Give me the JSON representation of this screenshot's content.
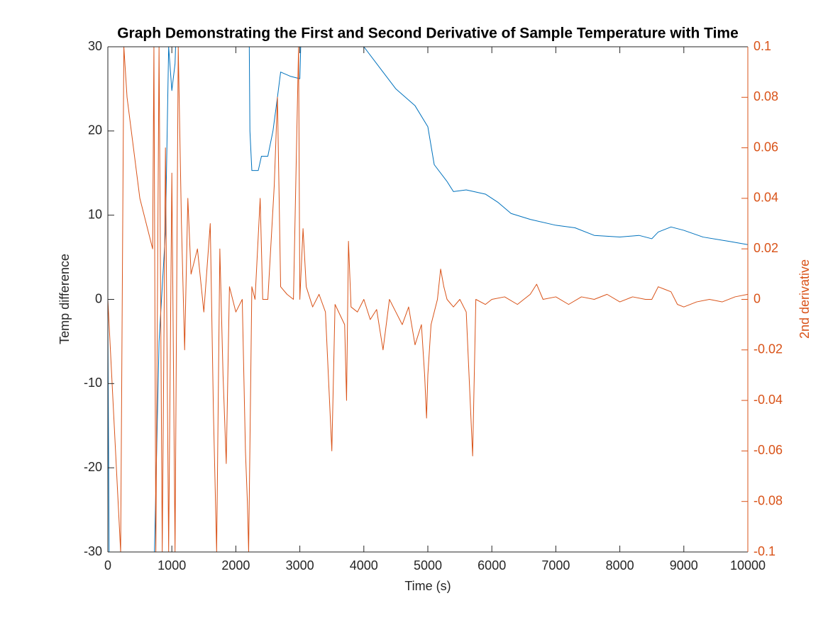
{
  "chart_data": {
    "type": "line",
    "title": "Graph Demonstrating the First and Second Derivative of Sample Temperature with Time",
    "xlabel": "Time (s)",
    "ylabel": "Temp difference",
    "y2label": "2nd derivative",
    "xlim": [
      0,
      10000
    ],
    "xticks": [
      0,
      1000,
      2000,
      3000,
      4000,
      5000,
      6000,
      7000,
      8000,
      9000,
      10000
    ],
    "ylim": [
      -30,
      30
    ],
    "yticks": [
      -30,
      -20,
      -10,
      0,
      10,
      20,
      30
    ],
    "y2lim": [
      -0.1,
      0.1
    ],
    "y2ticks": [
      -0.1,
      -0.08,
      -0.06,
      -0.04,
      -0.02,
      0,
      0.02,
      0.04,
      0.06,
      0.08,
      0.1
    ],
    "y2color": "#D95319",
    "series": [
      {
        "color": "#0072BD",
        "axis": "y",
        "x": [
          0,
          20,
          50,
          700,
          800,
          900,
          950,
          1000,
          1050,
          1100,
          2200,
          2220,
          2250,
          2350,
          2400,
          2500,
          2580,
          2650,
          2700,
          2850,
          3000,
          3050,
          4000,
          4300,
          4500,
          4800,
          5000,
          5100,
          5300,
          5400,
          5600,
          5900,
          6100,
          6300,
          6600,
          7000,
          7300,
          7600,
          8000,
          8300,
          8500,
          8600,
          8800,
          9000,
          9300,
          9700,
          10000
        ],
        "values": [
          -2,
          -30,
          -40,
          -40,
          -5,
          8,
          30,
          24.8,
          28,
          40,
          40,
          20,
          15.3,
          15.3,
          17,
          17,
          20,
          24,
          27,
          26.5,
          26.2,
          40,
          30,
          27,
          25,
          23,
          20.5,
          16,
          14,
          12.8,
          13,
          12.5,
          11.5,
          10.2,
          9.5,
          8.8,
          8.5,
          7.6,
          7.4,
          7.6,
          7.2,
          8.0,
          8.6,
          8.2,
          7.4,
          6.9,
          6.5
        ]
      },
      {
        "color": "#D95319",
        "axis": "y2",
        "x": [
          0,
          100,
          200,
          250,
          300,
          400,
          500,
          600,
          700,
          720,
          750,
          800,
          850,
          900,
          950,
          1000,
          1050,
          1100,
          1150,
          1200,
          1250,
          1300,
          1400,
          1500,
          1600,
          1650,
          1700,
          1750,
          1800,
          1850,
          1900,
          2000,
          2100,
          2150,
          2180,
          2200,
          2250,
          2300,
          2380,
          2420,
          2500,
          2600,
          2650,
          2700,
          2800,
          2900,
          2980,
          3000,
          3050,
          3100,
          3200,
          3300,
          3400,
          3500,
          3550,
          3700,
          3730,
          3760,
          3800,
          3900,
          4000,
          4100,
          4200,
          4300,
          4400,
          4500,
          4600,
          4700,
          4800,
          4900,
          4950,
          4980,
          5000,
          5050,
          5100,
          5150,
          5200,
          5250,
          5300,
          5400,
          5500,
          5600,
          5700,
          5750,
          5900,
          6000,
          6200,
          6400,
          6600,
          6700,
          6800,
          7000,
          7200,
          7400,
          7600,
          7800,
          8000,
          8200,
          8400,
          8500,
          8600,
          8700,
          8800,
          8900,
          9000,
          9200,
          9400,
          9600,
          9800,
          10000
        ],
        "values": [
          0,
          -0.05,
          -0.1,
          0.1,
          0.08,
          0.06,
          0.04,
          0.03,
          0.02,
          0.1,
          -0.1,
          0.1,
          -0.1,
          0.06,
          -0.1,
          0.05,
          -0.1,
          0.1,
          0.03,
          -0.02,
          0.04,
          0.01,
          0.02,
          -0.005,
          0.03,
          -0.045,
          -0.1,
          0.02,
          -0.03,
          -0.065,
          0.005,
          -0.005,
          0.0,
          -0.06,
          -0.08,
          -0.1,
          0.005,
          0.0,
          0.04,
          0.0,
          0.0,
          0.045,
          0.08,
          0.005,
          0.002,
          0.0,
          0.1,
          0.0,
          0.028,
          0.005,
          -0.003,
          0.002,
          -0.005,
          -0.06,
          -0.002,
          -0.01,
          -0.04,
          0.023,
          -0.003,
          -0.005,
          0.0,
          -0.008,
          -0.004,
          -0.02,
          0.0,
          -0.005,
          -0.01,
          -0.003,
          -0.018,
          -0.01,
          -0.03,
          -0.047,
          -0.03,
          -0.01,
          -0.005,
          0.0,
          0.012,
          0.005,
          0.0,
          -0.003,
          0.0,
          -0.005,
          -0.062,
          0.0,
          -0.002,
          0.0,
          0.001,
          -0.002,
          0.002,
          0.006,
          0.0,
          0.001,
          -0.002,
          0.001,
          0.0,
          0.002,
          -0.001,
          0.001,
          0.0,
          0.0,
          0.005,
          0.004,
          0.003,
          -0.002,
          -0.003,
          -0.001,
          0.0,
          -0.001,
          0.001,
          0.002
        ]
      }
    ]
  }
}
